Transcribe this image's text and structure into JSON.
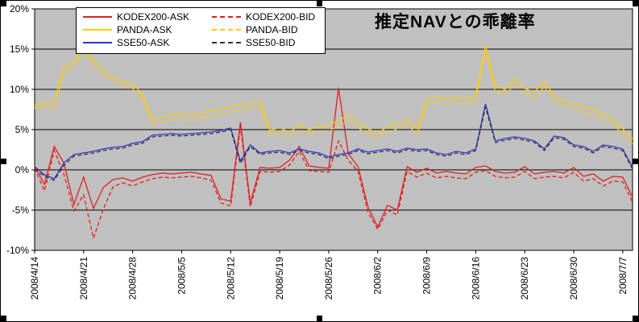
{
  "chart_data": {
    "type": "line",
    "title": "推定NAVとの乖離率",
    "xlabel": "",
    "ylabel": "",
    "ylim": [
      -10,
      20
    ],
    "grid": true,
    "plot_bg": "#C0C0C0",
    "legend_position": "top-left",
    "yticks": [
      "20%",
      "15%",
      "10%",
      "5%",
      "0%",
      "-5%",
      "-10%"
    ],
    "ytick_values": [
      20,
      15,
      10,
      5,
      0,
      -5,
      -10
    ],
    "x_tick_labels": [
      "2008/4/14",
      "2008/4/21",
      "2008/4/28",
      "2008/5/5",
      "2008/5/12",
      "2008/5/19",
      "2008/5/26",
      "2008/6/2",
      "2008/6/9",
      "2008/6/16",
      "2008/6/23",
      "2008/6/30",
      "2008/7/7"
    ],
    "x_tick_indices": [
      0,
      5,
      10,
      15,
      20,
      25,
      30,
      35,
      40,
      45,
      50,
      55,
      60
    ],
    "x": [
      "2008/4/14",
      "2008/4/15",
      "2008/4/16",
      "2008/4/17",
      "2008/4/18",
      "2008/4/21",
      "2008/4/22",
      "2008/4/23",
      "2008/4/24",
      "2008/4/25",
      "2008/4/28",
      "2008/4/29",
      "2008/4/30",
      "2008/5/1",
      "2008/5/2",
      "2008/5/5",
      "2008/5/6",
      "2008/5/7",
      "2008/5/8",
      "2008/5/9",
      "2008/5/12",
      "2008/5/13",
      "2008/5/14",
      "2008/5/15",
      "2008/5/16",
      "2008/5/19",
      "2008/5/20",
      "2008/5/21",
      "2008/5/22",
      "2008/5/23",
      "2008/5/26",
      "2008/5/27",
      "2008/5/28",
      "2008/5/29",
      "2008/5/30",
      "2008/6/2",
      "2008/6/3",
      "2008/6/4",
      "2008/6/5",
      "2008/6/6",
      "2008/6/9",
      "2008/6/10",
      "2008/6/11",
      "2008/6/12",
      "2008/6/13",
      "2008/6/16",
      "2008/6/17",
      "2008/6/18",
      "2008/6/19",
      "2008/6/20",
      "2008/6/23",
      "2008/6/24",
      "2008/6/25",
      "2008/6/26",
      "2008/6/27",
      "2008/6/30",
      "2008/7/1",
      "2008/7/2",
      "2008/7/3",
      "2008/7/4",
      "2008/7/7",
      "2008/7/8"
    ],
    "series": [
      {
        "name": "KODEX200-ASK",
        "color": "#E01F1F",
        "dash": "solid",
        "values": [
          0.5,
          -1.8,
          2.9,
          0.8,
          -4.3,
          -0.9,
          -4.8,
          -2.2,
          -1.2,
          -1.0,
          -1.4,
          -0.9,
          -0.6,
          -0.4,
          -0.5,
          -0.4,
          -0.3,
          -0.5,
          -0.7,
          -3.6,
          -3.9,
          5.9,
          -4.1,
          0.3,
          0.2,
          0.3,
          1.2,
          2.9,
          0.5,
          0.3,
          0.2,
          10.2,
          2.0,
          0.4,
          -4.6,
          -7.1,
          -4.4,
          -5.0,
          0.4,
          -0.3,
          0.2,
          -0.4,
          -0.2,
          -0.4,
          -0.5,
          0.3,
          0.5,
          -0.2,
          -0.4,
          -0.3,
          0.4,
          -0.5,
          -0.3,
          -0.2,
          -0.4,
          0.3,
          -0.8,
          -0.5,
          -1.4,
          -0.8,
          -0.9,
          -3.4
        ]
      },
      {
        "name": "KODEX200-BID",
        "color": "#E01F1F",
        "dash": "dashed",
        "values": [
          0.2,
          -2.6,
          2.4,
          -0.6,
          -5.1,
          -3.1,
          -8.5,
          -4.9,
          -2.1,
          -1.6,
          -2.0,
          -1.5,
          -1.1,
          -0.9,
          -1.0,
          -0.9,
          -0.8,
          -1.0,
          -1.3,
          -4.1,
          -4.5,
          5.4,
          -4.6,
          -0.2,
          -0.3,
          -0.2,
          0.6,
          2.3,
          -0.1,
          -0.2,
          -0.3,
          3.6,
          1.2,
          -0.2,
          -5.2,
          -7.4,
          -5.0,
          -5.6,
          -0.2,
          -0.9,
          -0.4,
          -1.0,
          -0.8,
          -1.0,
          -1.1,
          -0.3,
          -0.1,
          -0.8,
          -1.0,
          -0.9,
          -0.2,
          -1.1,
          -0.9,
          -0.8,
          -1.0,
          -0.3,
          -1.4,
          -1.1,
          -2.0,
          -1.4,
          -1.5,
          -4.0
        ]
      },
      {
        "name": "PANDA-ASK",
        "color": "#FFCC00",
        "dash": "solid",
        "values": [
          8.0,
          8.3,
          8.6,
          12.8,
          13.4,
          15.2,
          13.6,
          12.4,
          11.6,
          11.0,
          10.7,
          9.4,
          6.3,
          6.6,
          6.9,
          7.0,
          6.8,
          7.1,
          7.3,
          7.6,
          7.9,
          8.1,
          8.3,
          8.6,
          4.9,
          5.2,
          4.7,
          5.5,
          5.0,
          5.3,
          5.6,
          6.1,
          6.8,
          5.9,
          5.1,
          4.6,
          5.3,
          5.8,
          6.3,
          5.1,
          8.7,
          9.1,
          8.8,
          9.0,
          8.9,
          9.2,
          15.5,
          10.4,
          10.0,
          11.4,
          10.1,
          9.7,
          11.0,
          9.2,
          8.6,
          8.2,
          7.9,
          7.5,
          7.0,
          6.4,
          5.1,
          3.9
        ]
      },
      {
        "name": "PANDA-BID",
        "color": "#FFCC00",
        "dash": "dashed",
        "values": [
          7.7,
          7.9,
          7.6,
          12.1,
          12.8,
          14.7,
          13.0,
          11.8,
          11.0,
          10.4,
          10.1,
          8.8,
          5.6,
          5.9,
          6.2,
          6.3,
          6.1,
          6.4,
          6.6,
          6.9,
          7.2,
          7.4,
          7.6,
          7.9,
          4.2,
          4.5,
          4.0,
          4.8,
          4.3,
          4.6,
          4.9,
          5.4,
          6.1,
          5.2,
          4.4,
          3.9,
          4.6,
          5.1,
          5.6,
          4.4,
          8.0,
          8.4,
          8.1,
          8.3,
          8.2,
          8.5,
          14.8,
          9.7,
          9.3,
          10.7,
          9.4,
          9.0,
          10.3,
          8.5,
          7.9,
          7.5,
          7.2,
          6.8,
          6.3,
          5.7,
          4.4,
          3.2
        ]
      },
      {
        "name": "SSE50-ASK",
        "color": "#3333CC",
        "dash": "solid",
        "values": [
          0.4,
          -0.6,
          -1.1,
          0.9,
          1.9,
          2.1,
          2.3,
          2.6,
          2.8,
          2.9,
          3.3,
          3.5,
          4.3,
          4.4,
          4.5,
          4.4,
          4.5,
          4.6,
          4.7,
          4.9,
          5.2,
          1.1,
          3.1,
          2.1,
          2.3,
          2.4,
          2.1,
          2.6,
          2.3,
          2.1,
          1.6,
          1.9,
          2.1,
          2.6,
          2.2,
          2.4,
          2.6,
          2.3,
          2.7,
          2.5,
          2.6,
          2.1,
          1.9,
          2.3,
          2.1,
          2.6,
          8.2,
          3.6,
          3.9,
          4.1,
          3.9,
          3.6,
          2.6,
          4.2,
          4.0,
          3.1,
          2.9,
          2.3,
          3.1,
          2.9,
          2.6,
          0.3
        ]
      },
      {
        "name": "SSE50-BID",
        "color": "#333333",
        "dash": "dashed",
        "values": [
          0.1,
          -0.8,
          -1.3,
          0.6,
          1.7,
          1.9,
          2.1,
          2.4,
          2.6,
          2.7,
          3.1,
          3.3,
          4.1,
          4.2,
          4.3,
          4.2,
          4.3,
          4.4,
          4.5,
          4.7,
          5.0,
          0.8,
          2.9,
          1.9,
          2.1,
          2.2,
          1.9,
          2.4,
          2.1,
          1.9,
          1.4,
          1.7,
          1.9,
          2.4,
          2.0,
          2.2,
          2.4,
          2.1,
          2.5,
          2.3,
          2.4,
          1.9,
          1.7,
          2.1,
          1.9,
          2.4,
          7.8,
          3.4,
          3.7,
          3.9,
          3.7,
          3.4,
          2.4,
          4.0,
          3.8,
          2.9,
          2.7,
          2.1,
          2.9,
          2.7,
          2.4,
          0.1
        ]
      }
    ]
  }
}
